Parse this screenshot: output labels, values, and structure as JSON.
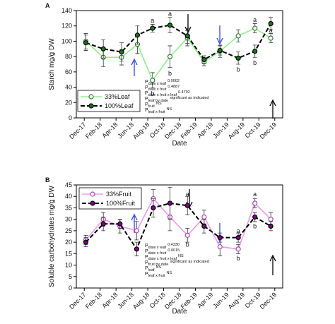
{
  "chart_data": [
    {
      "type": "line",
      "panel": "A",
      "ylabel": "Starch mg/g DW",
      "xlabel": "Date",
      "xlim": [
        -1,
        25
      ],
      "ylim": [
        0,
        140
      ],
      "yticks": [
        0,
        20,
        40,
        60,
        80,
        100,
        120,
        140
      ],
      "xticks": [
        {
          "value": 0,
          "label": "Dec-17"
        },
        {
          "value": 2,
          "label": "Feb-18"
        },
        {
          "value": 4,
          "label": "Apr-18"
        },
        {
          "value": 6,
          "label": "Jun-18"
        },
        {
          "value": 8,
          "label": "Aug-18"
        },
        {
          "value": 10,
          "label": "Oct-18"
        },
        {
          "value": 12,
          "label": "Dec-18"
        },
        {
          "value": 14,
          "label": "Feb-19"
        },
        {
          "value": 16,
          "label": "Apr-19"
        },
        {
          "value": 18,
          "label": "Jun-19"
        },
        {
          "value": 20,
          "label": "Aug-19"
        },
        {
          "value": 22,
          "label": "Oct-19"
        },
        {
          "value": 24,
          "label": "Dec-19"
        }
      ],
      "x": [
        0.2,
        2.4,
        4.7,
        6.7,
        8.6,
        10.8,
        13,
        15.1,
        17.1,
        19.4,
        21.5,
        23.5
      ],
      "series": [
        {
          "name": "33%Leaf",
          "color": "#90ee90",
          "marker_color": "#2e7d2e",
          "open": true,
          "dashed": false,
          "values": [
            100,
            79,
            79,
            96,
            49,
            80,
            104,
            73,
            87,
            107,
            117,
            104
          ],
          "errors": [
            10,
            12,
            10,
            12,
            10,
            14,
            10,
            5,
            8,
            8,
            6,
            6
          ]
        },
        {
          "name": "100%Leaf",
          "color": "#000000",
          "marker_color": "#1a7a1a",
          "open": false,
          "dashed": true,
          "values": [
            98,
            90,
            86,
            108,
            117,
            121,
            107,
            76,
            88,
            78,
            87,
            123
          ],
          "errors": [
            10,
            12,
            12,
            12,
            5,
            10,
            10,
            5,
            6,
            8,
            8,
            8
          ]
        }
      ],
      "letters": [
        {
          "text": "a",
          "x": 8.6,
          "y": 127
        },
        {
          "text": "b",
          "x": 8.6,
          "y": 32
        },
        {
          "text": "a",
          "x": 10.8,
          "y": 136
        },
        {
          "text": "b",
          "x": 10.8,
          "y": 58
        },
        {
          "text": "a",
          "x": 21.5,
          "y": 128
        },
        {
          "text": "b",
          "x": 19.4,
          "y": 63
        },
        {
          "text": "a",
          "x": 23.5,
          "y": 114
        },
        {
          "text": "b",
          "x": 21.5,
          "y": 72
        }
      ],
      "stats": [
        {
          "p": "P",
          "sub": "date x leaf",
          "val": "0.0002"
        },
        {
          "p": "P",
          "sub": "date x fruit",
          "val": "0.4887"
        },
        {
          "p": "P",
          "sub": "date x fruit x leaf",
          "val": "0.4792"
        },
        {
          "p": "P",
          "sub": "leaf by date",
          "val": "significant as indicated"
        },
        {
          "p": "P",
          "sub": "fruit",
          "val": "NS"
        },
        {
          "p": "P",
          "sub": "leaf x fruit",
          "val": "NS"
        }
      ]
    },
    {
      "type": "line",
      "panel": "B",
      "ylabel": "Soluble carbohydrates mg/g DW",
      "xlabel": "Date",
      "xlim": [
        -1,
        25
      ],
      "ylim": [
        0,
        45
      ],
      "yticks": [
        0,
        5,
        10,
        15,
        20,
        25,
        30,
        35,
        40,
        45
      ],
      "xticks": [
        {
          "value": 0,
          "label": "Dec-17"
        },
        {
          "value": 2,
          "label": "Feb-18"
        },
        {
          "value": 4,
          "label": "Apr-18"
        },
        {
          "value": 6,
          "label": "Jun-18"
        },
        {
          "value": 8,
          "label": "Aug-18"
        },
        {
          "value": 10,
          "label": "Oct-18"
        },
        {
          "value": 12,
          "label": "Dec-18"
        },
        {
          "value": 14,
          "label": "Feb-19"
        },
        {
          "value": 16,
          "label": "Apr-19"
        },
        {
          "value": 18,
          "label": "Jun-19"
        },
        {
          "value": 20,
          "label": "Aug-19"
        },
        {
          "value": 22,
          "label": "Oct-19"
        },
        {
          "value": 24,
          "label": "Dec-19"
        }
      ],
      "x": [
        0.2,
        2.4,
        4.5,
        6.6,
        8.7,
        10.8,
        13,
        15.1,
        17.1,
        19.4,
        21.5,
        23.5
      ],
      "series": [
        {
          "name": "33%Fruit",
          "color": "#ee99ee",
          "marker_color": "#b040b0",
          "open": true,
          "dashed": false,
          "values": [
            21,
            30,
            27,
            25,
            39,
            31,
            23,
            31,
            18,
            17,
            37,
            30
          ],
          "errors": [
            2,
            3,
            3,
            4,
            4,
            6,
            3,
            3,
            4,
            2,
            2,
            3
          ]
        },
        {
          "name": "100%Fruit",
          "color": "#000000",
          "marker_color": "#800080",
          "open": false,
          "dashed": true,
          "values": [
            20,
            28,
            28,
            17,
            35,
            37,
            36,
            27,
            22,
            22,
            31,
            27
          ],
          "errors": [
            2,
            3,
            2,
            3,
            4,
            7,
            4,
            3,
            2,
            2,
            2,
            2
          ]
        }
      ],
      "letters": [
        {
          "text": "a",
          "x": 13,
          "y": 41
        },
        {
          "text": "b",
          "x": 13,
          "y": 19
        },
        {
          "text": "a",
          "x": 19.4,
          "y": 25
        },
        {
          "text": "b",
          "x": 19.4,
          "y": 13
        },
        {
          "text": "a",
          "x": 21.5,
          "y": 41
        },
        {
          "text": "b",
          "x": 21.5,
          "y": 27
        }
      ],
      "stats": [
        {
          "p": "P",
          "sub": "date x leaf",
          "val": "0.4330"
        },
        {
          "p": "P",
          "sub": "date x fruit",
          "val": "0.0015"
        },
        {
          "p": "P",
          "sub": "date x fruit x leaf",
          "val": "NS"
        },
        {
          "p": "P",
          "sub": "fruit by date",
          "val": "significant as indicated"
        },
        {
          "p": "P",
          "sub": "leaf",
          "val": "NS"
        },
        {
          "p": "P",
          "sub": "leaf x fruit",
          "val": "NS"
        }
      ]
    }
  ]
}
